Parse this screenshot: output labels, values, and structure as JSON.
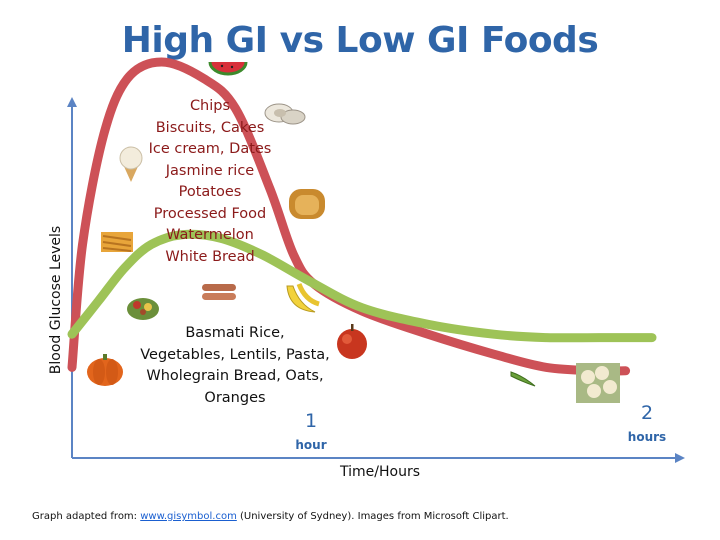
{
  "chart_data": {
    "type": "line",
    "title": "High GI vs Low GI Foods",
    "xlabel": "Time/Hours",
    "ylabel": "Blood Glucose Levels",
    "xlim": [
      0,
      2.2
    ],
    "ylim": [
      0,
      1
    ],
    "grid": false,
    "legend": "none",
    "x_ticks": [
      {
        "value": 1,
        "number": "1",
        "unit": "hour"
      },
      {
        "value": 2,
        "number": "2",
        "unit": "hours"
      }
    ],
    "series": [
      {
        "color": "#cd5157",
        "points": [
          [
            0,
            0.08
          ],
          [
            0.04,
            0.45
          ],
          [
            0.12,
            0.78
          ],
          [
            0.21,
            0.95
          ],
          [
            0.34,
            1.0
          ],
          [
            0.5,
            0.95
          ],
          [
            0.62,
            0.86
          ],
          [
            0.75,
            0.62
          ],
          [
            0.84,
            0.42
          ],
          [
            0.92,
            0.33
          ],
          [
            1.1,
            0.25
          ],
          [
            1.35,
            0.18
          ],
          [
            1.6,
            0.12
          ],
          [
            1.8,
            0.08
          ],
          [
            2.0,
            0.07
          ],
          [
            2.1,
            0.07
          ]
        ]
      },
      {
        "color": "#9ec357",
        "points": [
          [
            0,
            0.18
          ],
          [
            0.1,
            0.28
          ],
          [
            0.2,
            0.38
          ],
          [
            0.3,
            0.45
          ],
          [
            0.42,
            0.48
          ],
          [
            0.56,
            0.47
          ],
          [
            0.72,
            0.42
          ],
          [
            0.9,
            0.34
          ],
          [
            1.1,
            0.26
          ],
          [
            1.35,
            0.21
          ],
          [
            1.6,
            0.18
          ],
          [
            1.8,
            0.17
          ],
          [
            2.0,
            0.17
          ],
          [
            2.2,
            0.17
          ]
        ]
      }
    ],
    "annotations": {
      "high_gi_foods": [
        "Chips",
        "Biscuits, Cakes",
        "Ice cream, Dates",
        "Jasmine rice",
        "Potatoes",
        "Processed Food",
        "Watermelon",
        "White Bread"
      ],
      "low_gi_foods": [
        "Basmati Rice,",
        "Vegetables, Lentils, Pasta,",
        "Wholegrain Bread, Oats,",
        "Oranges"
      ]
    }
  },
  "colors": {
    "title": "#2f65a8",
    "axis": "#5b84c4",
    "high_gi_text": "#8b1a1a"
  },
  "footer": {
    "prefix": "Graph adapted from: ",
    "link_text": "www.gisymbol.com",
    "suffix": " (University of Sydney). Images from Microsoft Clipart."
  },
  "food_icons": [
    "watermelon-icon",
    "oysters-icon",
    "bread-icon",
    "ice-cream-icon",
    "chips-icon",
    "pumpkin-icon",
    "salad-icon",
    "sausages-icon",
    "banana-icon",
    "apple-icon",
    "pea-pod-icon",
    "cauliflower-icon"
  ]
}
